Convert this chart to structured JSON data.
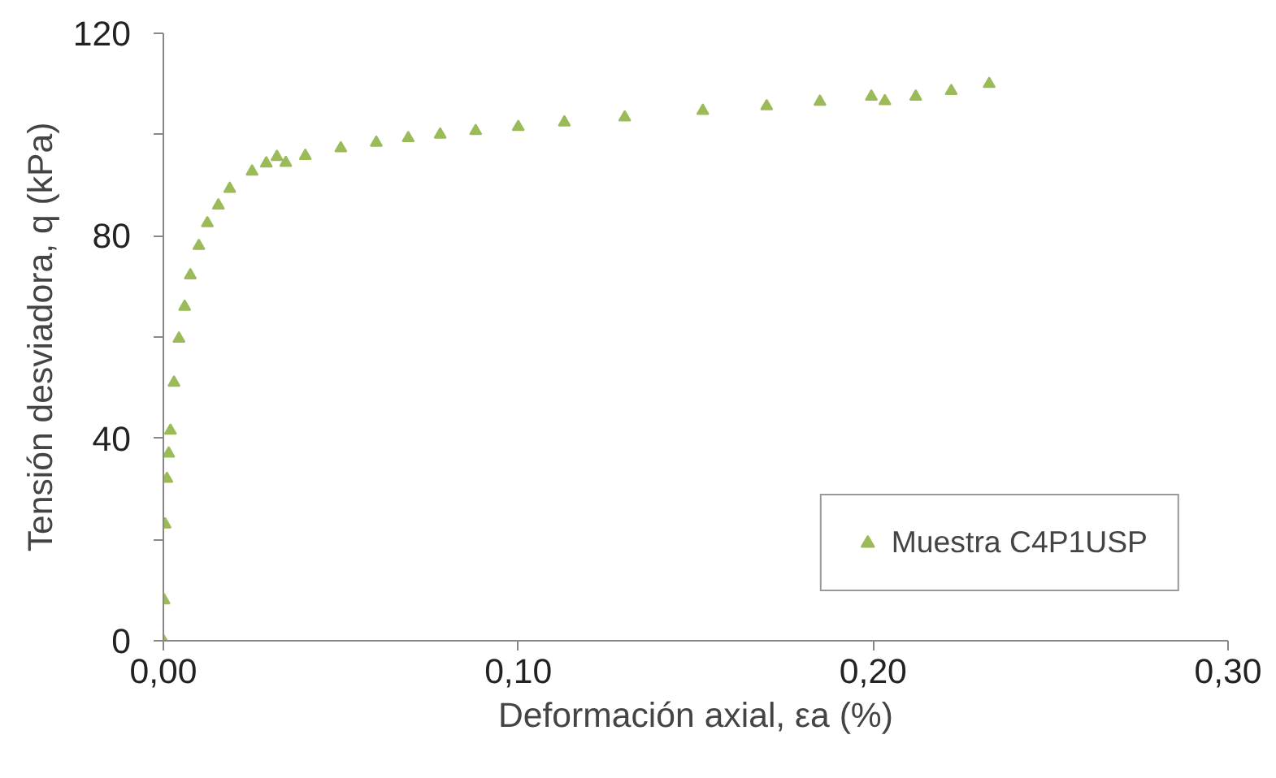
{
  "chart_data": {
    "type": "scatter",
    "xlabel": "Deformación axial, εa (%)",
    "ylabel": "Tensión desviadora, q (kPa)",
    "xlim": [
      0,
      0.3
    ],
    "ylim": [
      0,
      120
    ],
    "xticks": [
      {
        "value": 0,
        "label": "0,00"
      },
      {
        "value": 0.1,
        "label": "0,10"
      },
      {
        "value": 0.2,
        "label": "0,20"
      },
      {
        "value": 0.3,
        "label": "0,30"
      }
    ],
    "yticks": [
      0,
      {
        "value": 20,
        "label": null
      },
      40,
      {
        "value": 60,
        "label": null
      },
      80,
      {
        "value": 100,
        "label": null
      },
      120
    ],
    "grid": false,
    "legend": "bottom right",
    "marker": "triangle",
    "series": [
      {
        "name": "Muestra C4P1USP",
        "color": "#9bbb59",
        "x": [
          0,
          0.0002,
          0.0005,
          0.001,
          0.0015,
          0.002,
          0.003,
          0.0044,
          0.006,
          0.0076,
          0.01,
          0.0124,
          0.0155,
          0.0187,
          0.025,
          0.029,
          0.032,
          0.0345,
          0.04,
          0.05,
          0.06,
          0.069,
          0.078,
          0.088,
          0.1,
          0.113,
          0.13,
          0.152,
          0.17,
          0.185,
          0.1995,
          0.2033,
          0.212,
          0.222,
          0.2327
        ],
        "values": [
          0,
          8,
          23,
          32,
          37,
          41.5,
          51,
          59.7,
          66,
          72.2,
          78,
          82.5,
          86,
          89.3,
          92.7,
          94.3,
          95.6,
          94.4,
          95.8,
          97.3,
          98.4,
          99.3,
          100,
          100.7,
          101.5,
          102.4,
          103.4,
          104.7,
          105.6,
          106.5,
          107.5,
          106.6,
          107.5,
          108.6,
          110
        ]
      }
    ]
  }
}
